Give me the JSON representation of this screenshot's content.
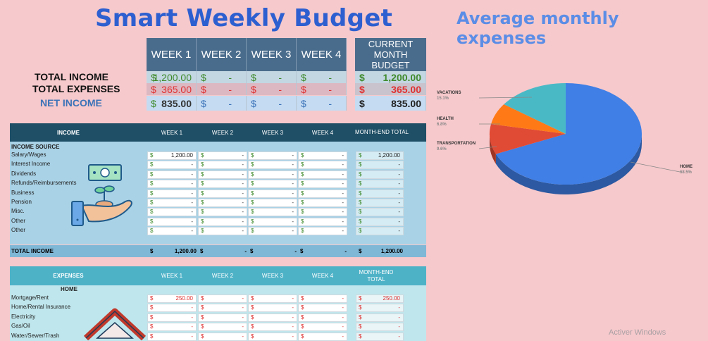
{
  "title": "Smart Weekly Budget",
  "chart_title": "Average monthly expenses",
  "summary": {
    "weeks": [
      "WEEK 1",
      "WEEK 2",
      "WEEK 3",
      "WEEK 4"
    ],
    "current_month_header": "CURRENT MONTH BUDGET",
    "rows": [
      {
        "label": "TOTAL INCOME",
        "values": [
          "1,200.00",
          "-",
          "-",
          "-"
        ],
        "current": "1,200.00"
      },
      {
        "label": "TOTAL EXPENSES",
        "values": [
          "365.00",
          "-",
          "-",
          "-"
        ],
        "current": "365.00"
      },
      {
        "label": "NET INCOME",
        "values": [
          "835.00",
          "-",
          "-",
          "-"
        ],
        "current": "835.00"
      }
    ],
    "currency": "$"
  },
  "income": {
    "header": {
      "title": "INCOME",
      "weeks": [
        "WEEK 1",
        "WEEK 2",
        "WEEK 3",
        "WEEK 4"
      ],
      "total": "MONTH-END TOTAL"
    },
    "section_label": "INCOME SOURCE",
    "rows": [
      {
        "label": "Salary/Wages",
        "w1": "1,200.00",
        "w2": "-",
        "w3": "-",
        "w4": "-",
        "total": "1,200.00"
      },
      {
        "label": "Interest Income",
        "w1": "-",
        "w2": "-",
        "w3": "-",
        "w4": "-",
        "total": "-"
      },
      {
        "label": "Dividends",
        "w1": "-",
        "w2": "-",
        "w3": "-",
        "w4": "-",
        "total": "-"
      },
      {
        "label": "Refunds/Reimbursements",
        "w1": "-",
        "w2": "-",
        "w3": "-",
        "w4": "-",
        "total": "-"
      },
      {
        "label": "Business",
        "w1": "-",
        "w2": "-",
        "w3": "-",
        "w4": "-",
        "total": "-"
      },
      {
        "label": "Pension",
        "w1": "-",
        "w2": "-",
        "w3": "-",
        "w4": "-",
        "total": "-"
      },
      {
        "label": "Misc.",
        "w1": "-",
        "w2": "-",
        "w3": "-",
        "w4": "-",
        "total": "-"
      },
      {
        "label": "Other",
        "w1": "-",
        "w2": "-",
        "w3": "-",
        "w4": "-",
        "total": "-"
      },
      {
        "label": "Other",
        "w1": "-",
        "w2": "-",
        "w3": "-",
        "w4": "-",
        "total": "-"
      }
    ],
    "total_row": {
      "label": "TOTAL INCOME",
      "w1": "1,200.00",
      "w2": "-",
      "w3": "-",
      "w4": "-",
      "total": "1,200.00"
    }
  },
  "expenses": {
    "header": {
      "title": "EXPENSES",
      "weeks": [
        "WEEK 1",
        "WEEK 2",
        "WEEK 3",
        "WEEK 4"
      ],
      "total": "MONTH-END TOTAL"
    },
    "section_label": "HOME",
    "rows": [
      {
        "label": "Mortgage/Rent",
        "w1": "250.00",
        "w2": "-",
        "w3": "-",
        "w4": "-",
        "total": "250.00"
      },
      {
        "label": "Home/Rental Insurance",
        "w1": "-",
        "w2": "-",
        "w3": "-",
        "w4": "-",
        "total": "-"
      },
      {
        "label": "Electricity",
        "w1": "-",
        "w2": "-",
        "w3": "-",
        "w4": "-",
        "total": "-"
      },
      {
        "label": "Gas/Oil",
        "w1": "-",
        "w2": "-",
        "w3": "-",
        "w4": "-",
        "total": "-"
      },
      {
        "label": "Water/Sewer/Trash",
        "w1": "-",
        "w2": "-",
        "w3": "-",
        "w4": "-",
        "total": "-"
      }
    ]
  },
  "chart_data": {
    "type": "pie",
    "title": "Average monthly expenses",
    "slices": [
      {
        "name": "HOME",
        "value": 68.5,
        "label": "68.5%",
        "color": "#3f7fe6"
      },
      {
        "name": "TRANSPORTATION",
        "value": 9.6,
        "label": "9.6%",
        "color": "#e04b35"
      },
      {
        "name": "HEALTH",
        "value": 6.8,
        "label": "6.8%",
        "color": "#ff7a16"
      },
      {
        "name": "VACATIONS",
        "value": 15.1,
        "label": "15.1%",
        "color": "#4ab9c6"
      }
    ]
  },
  "watermark": "Activer Windows",
  "icons": {
    "income": "money-hand-icon",
    "home": "house-icon"
  }
}
